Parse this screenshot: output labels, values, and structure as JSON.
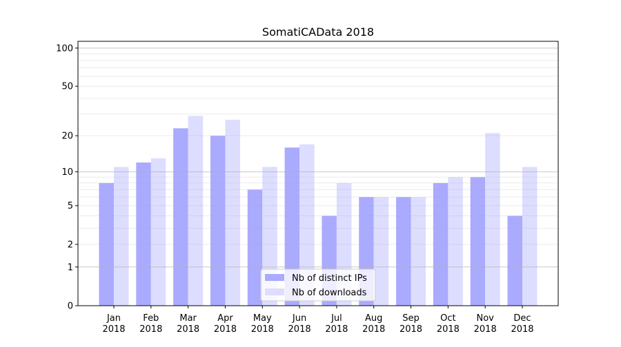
{
  "chart_data": {
    "type": "bar",
    "title": "SomatiCAData 2018",
    "xlabel": "",
    "ylabel": "",
    "yscale": "log10(1+y)",
    "ylim": [
      0,
      113
    ],
    "yticks": [
      0,
      1,
      2,
      5,
      10,
      20,
      50,
      100
    ],
    "grid": true,
    "legend_position": "bottom-center",
    "categories": [
      "Jan\n2018",
      "Feb\n2018",
      "Mar\n2018",
      "Apr\n2018",
      "May\n2018",
      "Jun\n2018",
      "Jul\n2018",
      "Aug\n2018",
      "Sep\n2018",
      "Oct\n2018",
      "Nov\n2018",
      "Dec\n2018"
    ],
    "series": [
      {
        "name": "Nb of distinct IPs",
        "color": "#aaaaff",
        "values": [
          8,
          12,
          23,
          20,
          7,
          16,
          4,
          6,
          6,
          8,
          9,
          4
        ]
      },
      {
        "name": "Nb of downloads",
        "color": "#ddddff",
        "values": [
          11,
          13,
          29,
          27,
          11,
          17,
          8,
          6,
          6,
          9,
          21,
          11
        ]
      }
    ]
  }
}
